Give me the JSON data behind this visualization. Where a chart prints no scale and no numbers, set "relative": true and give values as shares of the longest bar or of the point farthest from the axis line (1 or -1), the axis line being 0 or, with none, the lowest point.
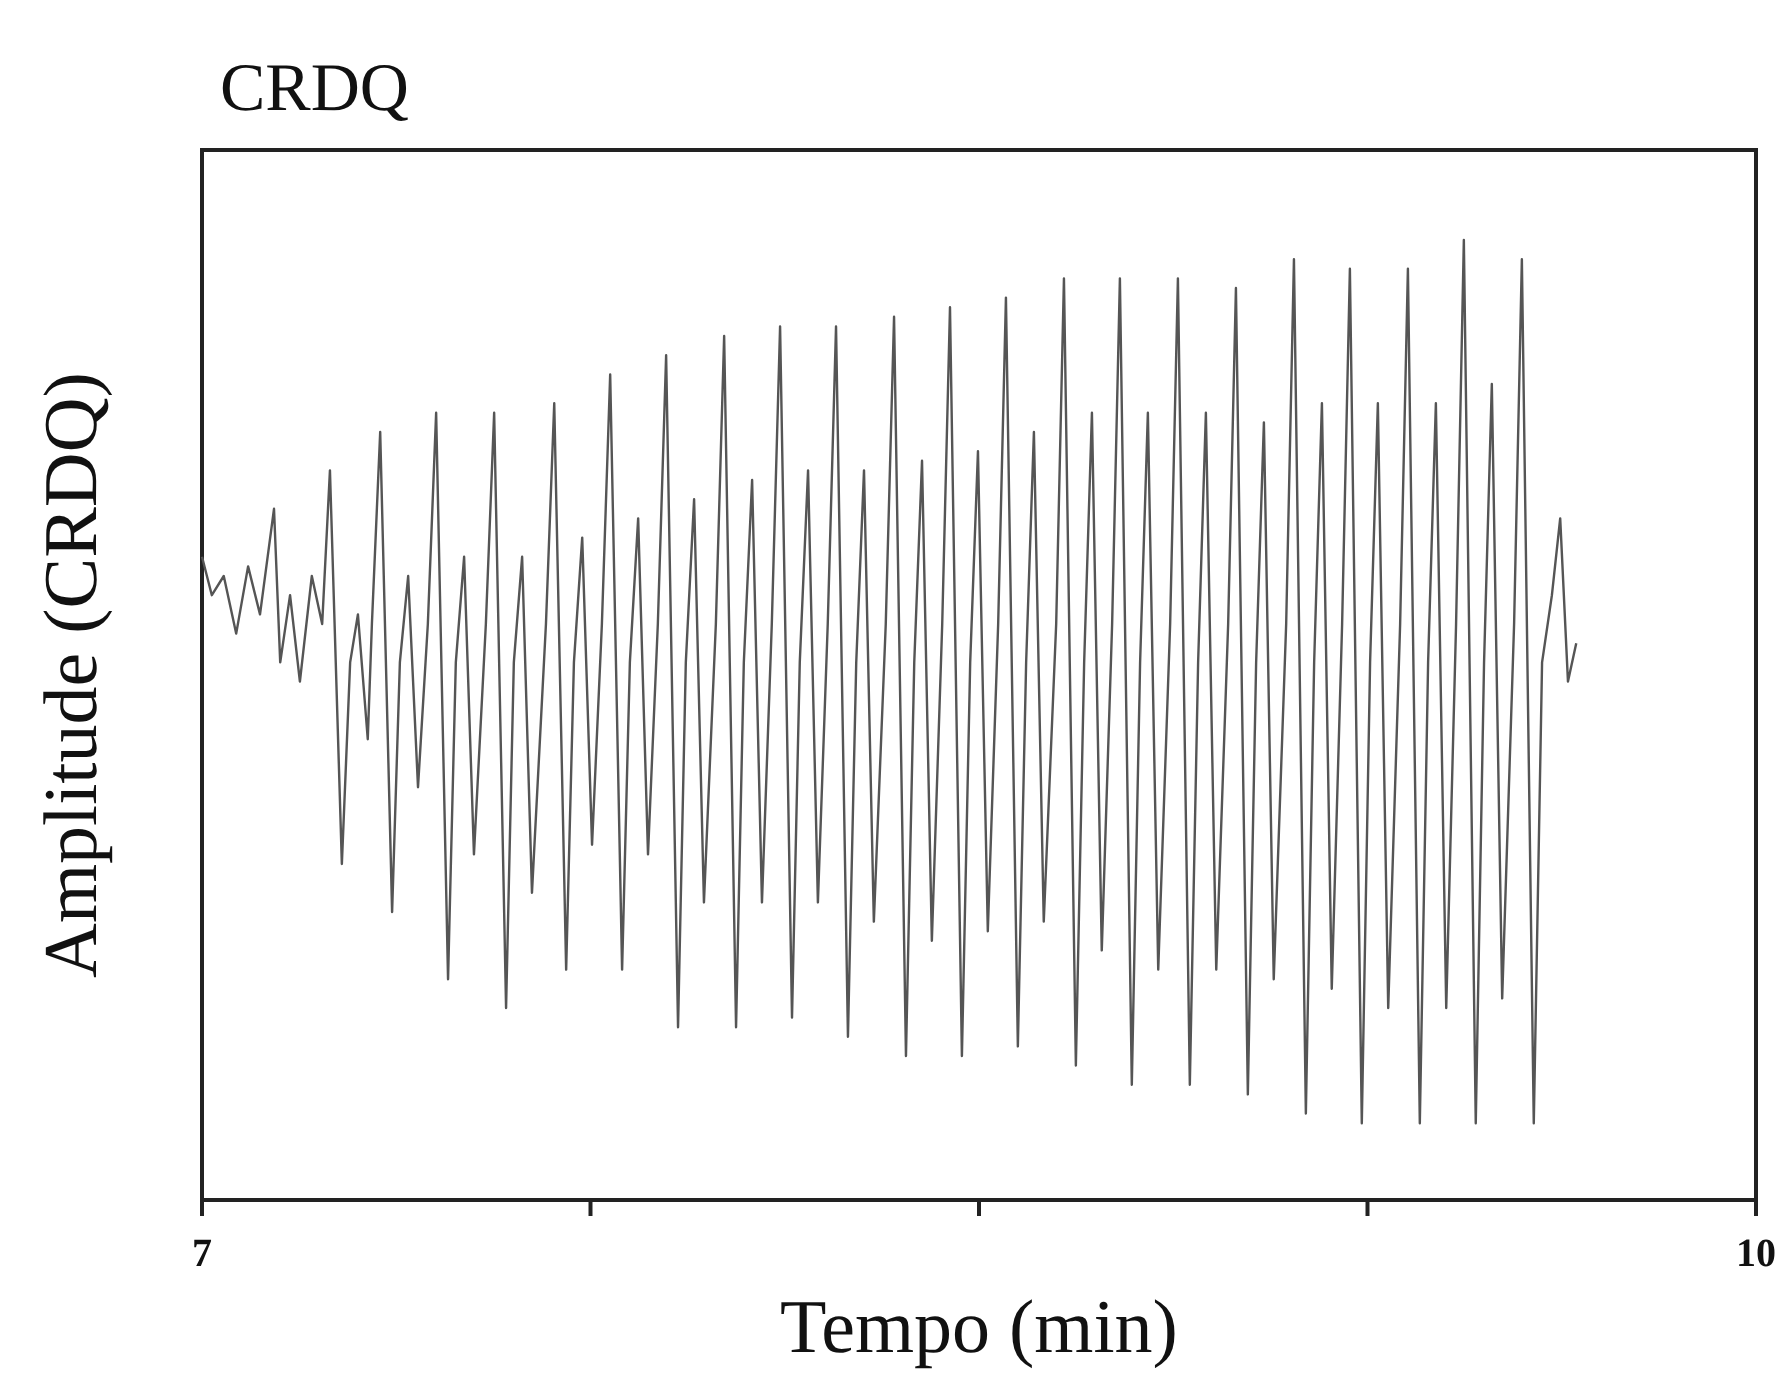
{
  "chart_data": {
    "type": "line",
    "title": "CRDQ",
    "xlabel": "Tempo (min)",
    "ylabel": "Amplitude (CRDQ)",
    "relative": true,
    "tick_labels": "x",
    "xlim": [
      7,
      10
    ],
    "xticks": [
      7,
      {
        "value": 7.75,
        "label": null
      },
      {
        "value": 8.5,
        "label": null
      },
      {
        "value": 9.25,
        "label": null
      },
      10
    ],
    "series": [
      {
        "color": "#555555",
        "x": [
          7.0,
          7.019,
          7.042,
          7.066,
          7.089,
          7.112,
          7.139,
          7.151,
          7.17,
          7.189,
          7.212,
          7.232,
          7.247,
          7.27,
          7.286,
          7.301,
          7.32,
          7.328,
          7.344,
          7.367,
          7.382,
          7.398,
          7.417,
          7.436,
          7.452,
          7.475,
          7.49,
          7.506,
          7.525,
          7.548,
          7.564,
          7.587,
          7.602,
          7.618,
          7.637,
          7.664,
          7.68,
          7.703,
          7.718,
          7.734,
          7.753,
          7.772,
          7.788,
          7.811,
          7.826,
          7.842,
          7.861,
          7.88,
          7.896,
          7.919,
          7.934,
          7.95,
          7.969,
          7.992,
          8.008,
          8.031,
          8.046,
          8.062,
          8.081,
          8.1,
          8.116,
          8.139,
          8.154,
          8.17,
          8.189,
          8.208,
          8.224,
          8.247,
          8.263,
          8.278,
          8.297,
          8.32,
          8.336,
          8.359,
          8.375,
          8.39,
          8.409,
          8.429,
          8.444,
          8.467,
          8.483,
          8.498,
          8.517,
          8.537,
          8.552,
          8.575,
          8.591,
          8.606,
          8.625,
          8.649,
          8.664,
          8.687,
          8.703,
          8.718,
          8.737,
          8.757,
          8.772,
          8.795,
          8.811,
          8.826,
          8.846,
          8.869,
          8.884,
          8.907,
          8.923,
          8.938,
          8.958,
          8.981,
          8.996,
          9.019,
          9.035,
          9.05,
          9.069,
          9.093,
          9.108,
          9.131,
          9.147,
          9.162,
          9.181,
          9.201,
          9.216,
          9.239,
          9.255,
          9.27,
          9.29,
          9.313,
          9.328,
          9.351,
          9.367,
          9.382,
          9.402,
          9.421,
          9.436,
          9.459,
          9.475,
          9.49,
          9.51,
          9.533,
          9.548,
          9.571,
          9.587,
          9.606,
          9.622,
          9.637,
          9.653
        ],
        "values": [
          0.67,
          0.63,
          0.65,
          0.59,
          0.66,
          0.61,
          0.72,
          0.56,
          0.63,
          0.54,
          0.65,
          0.6,
          0.76,
          0.35,
          0.56,
          0.61,
          0.48,
          0.6,
          0.8,
          0.3,
          0.56,
          0.65,
          0.43,
          0.6,
          0.82,
          0.23,
          0.56,
          0.67,
          0.36,
          0.6,
          0.82,
          0.2,
          0.56,
          0.67,
          0.32,
          0.6,
          0.83,
          0.24,
          0.56,
          0.69,
          0.37,
          0.6,
          0.86,
          0.24,
          0.56,
          0.71,
          0.36,
          0.6,
          0.88,
          0.18,
          0.56,
          0.73,
          0.31,
          0.6,
          0.9,
          0.18,
          0.56,
          0.75,
          0.31,
          0.6,
          0.91,
          0.19,
          0.56,
          0.76,
          0.31,
          0.6,
          0.91,
          0.17,
          0.56,
          0.76,
          0.29,
          0.6,
          0.92,
          0.15,
          0.56,
          0.77,
          0.27,
          0.6,
          0.93,
          0.15,
          0.56,
          0.78,
          0.28,
          0.6,
          0.94,
          0.16,
          0.56,
          0.8,
          0.29,
          0.6,
          0.96,
          0.14,
          0.56,
          0.82,
          0.26,
          0.6,
          0.96,
          0.12,
          0.56,
          0.82,
          0.24,
          0.6,
          0.96,
          0.12,
          0.56,
          0.82,
          0.24,
          0.6,
          0.95,
          0.11,
          0.56,
          0.81,
          0.23,
          0.6,
          0.98,
          0.09,
          0.56,
          0.83,
          0.22,
          0.6,
          0.97,
          0.08,
          0.56,
          0.83,
          0.2,
          0.6,
          0.97,
          0.08,
          0.56,
          0.83,
          0.2,
          0.6,
          1.0,
          0.08,
          0.56,
          0.85,
          0.21,
          0.6,
          0.98,
          0.08,
          0.56,
          0.63,
          0.71,
          0.54,
          0.58
        ]
      }
    ]
  }
}
